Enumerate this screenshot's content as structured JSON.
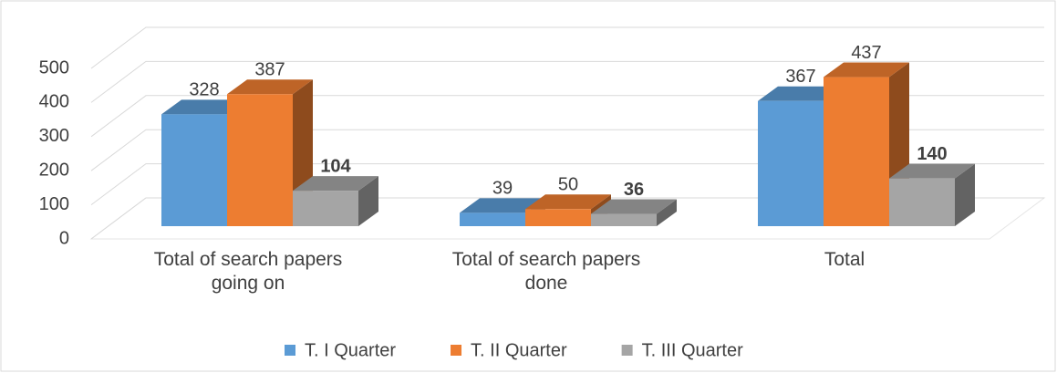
{
  "chart_data": {
    "type": "bar3d",
    "categories": [
      "Total of search papers going on",
      "Total of search papers done",
      "Total"
    ],
    "series": [
      {
        "name": "T. I Quarter",
        "color": "#5b9bd5",
        "values": [
          328,
          39,
          367
        ]
      },
      {
        "name": "T. II Quarter",
        "color": "#ed7d31",
        "values": [
          387,
          50,
          437
        ]
      },
      {
        "name": "T. III Quarter",
        "color": "#a5a5a5",
        "values": [
          104,
          36,
          140
        ]
      }
    ],
    "ylim": [
      0,
      500
    ],
    "yticks": [
      0,
      100,
      200,
      300,
      400,
      500
    ],
    "grid": true,
    "legend": "bottom"
  }
}
